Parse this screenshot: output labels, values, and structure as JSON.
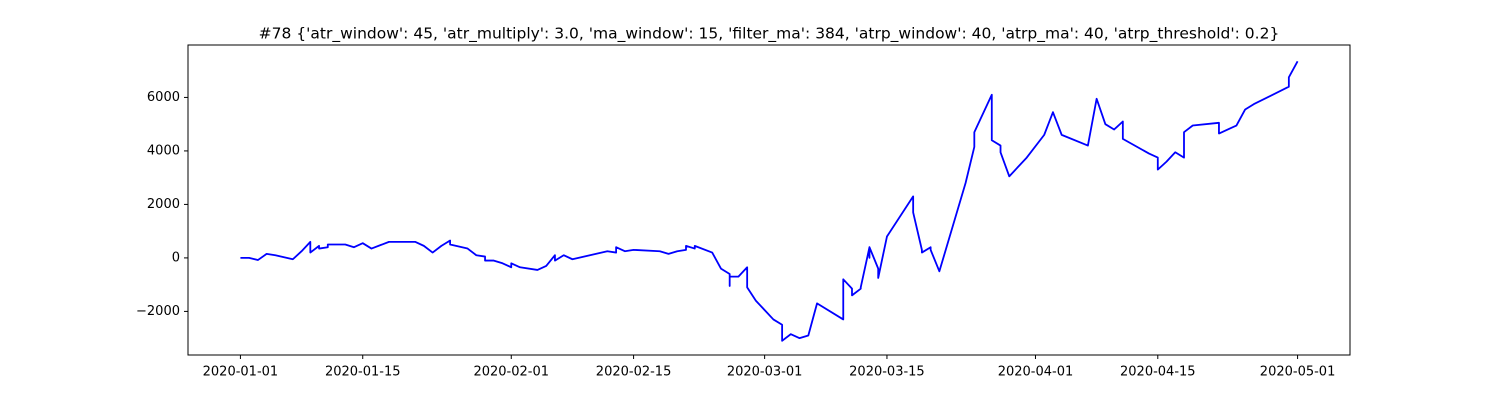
{
  "chart_data": {
    "type": "line",
    "title": "#78 {'atr_window': 45, 'atr_multiply': 3.0, 'ma_window': 15, 'filter_ma': 384, 'atrp_window': 40, 'atrp_ma': 40, 'atrp_threshold': 0.2}",
    "color": "#0000ff",
    "x": [
      "2020-01-01",
      "2020-01-02",
      "2020-01-03",
      "2020-01-04",
      "2020-01-05",
      "2020-01-07",
      "2020-01-08",
      "2020-01-09",
      "2020-01-09",
      "2020-01-10",
      "2020-01-10",
      "2020-01-11",
      "2020-01-11",
      "2020-01-13",
      "2020-01-14",
      "2020-01-15",
      "2020-01-16",
      "2020-01-18",
      "2020-01-21",
      "2020-01-22",
      "2020-01-23",
      "2020-01-24",
      "2020-01-25",
      "2020-01-25",
      "2020-01-27",
      "2020-01-28",
      "2020-01-29",
      "2020-01-29",
      "2020-01-30",
      "2020-01-31",
      "2020-02-01",
      "2020-02-01",
      "2020-02-02",
      "2020-02-04",
      "2020-02-05",
      "2020-02-06",
      "2020-02-06",
      "2020-02-07",
      "2020-02-08",
      "2020-02-10",
      "2020-02-12",
      "2020-02-13",
      "2020-02-13",
      "2020-02-14",
      "2020-02-15",
      "2020-02-18",
      "2020-02-19",
      "2020-02-20",
      "2020-02-21",
      "2020-02-21",
      "2020-02-22",
      "2020-02-22",
      "2020-02-24",
      "2020-02-25",
      "2020-02-26",
      "2020-02-26",
      "2020-02-26",
      "2020-02-27",
      "2020-02-28",
      "2020-02-28",
      "2020-02-29",
      "2020-03-02",
      "2020-03-03",
      "2020-03-03",
      "2020-03-04",
      "2020-03-05",
      "2020-03-06",
      "2020-03-07",
      "2020-03-10",
      "2020-03-10",
      "2020-03-11",
      "2020-03-11",
      "2020-03-12",
      "2020-03-12",
      "2020-03-13",
      "2020-03-13",
      "2020-03-13",
      "2020-03-14",
      "2020-03-14",
      "2020-03-15",
      "2020-03-18",
      "2020-03-18",
      "2020-03-18",
      "2020-03-19",
      "2020-03-19",
      "2020-03-20",
      "2020-03-20",
      "2020-03-21",
      "2020-03-24",
      "2020-03-25",
      "2020-03-25",
      "2020-03-27",
      "2020-03-27",
      "2020-03-27",
      "2020-03-28",
      "2020-03-28",
      "2020-03-29",
      "2020-03-31",
      "2020-04-02",
      "2020-04-03",
      "2020-04-04",
      "2020-04-07",
      "2020-04-08",
      "2020-04-09",
      "2020-04-10",
      "2020-04-11",
      "2020-04-11",
      "2020-04-14",
      "2020-04-15",
      "2020-04-15",
      "2020-04-16",
      "2020-04-17",
      "2020-04-18",
      "2020-04-18",
      "2020-04-19",
      "2020-04-22",
      "2020-04-22",
      "2020-04-24",
      "2020-04-25",
      "2020-04-26",
      "2020-04-30",
      "2020-04-30",
      "2020-05-01"
    ],
    "values": [
      0,
      0,
      -80,
      150,
      100,
      -50,
      250,
      600,
      200,
      450,
      350,
      400,
      500,
      500,
      400,
      550,
      350,
      600,
      600,
      450,
      200,
      450,
      650,
      500,
      350,
      100,
      50,
      -100,
      -100,
      -200,
      -350,
      -200,
      -350,
      -450,
      -300,
      100,
      -100,
      100,
      -50,
      100,
      250,
      200,
      400,
      250,
      300,
      250,
      150,
      250,
      300,
      450,
      350,
      450,
      200,
      -400,
      -600,
      -1050,
      -700,
      -700,
      -350,
      -1100,
      -1600,
      -2300,
      -2500,
      -3100,
      -2850,
      -3000,
      -2900,
      -1700,
      -2300,
      -800,
      -1150,
      -1400,
      -1150,
      -1100,
      400,
      0,
      400,
      -400,
      -750,
      800,
      2300,
      1800,
      1700,
      300,
      200,
      400,
      300,
      -500,
      2800,
      4150,
      4700,
      6100,
      5100,
      4400,
      4200,
      3950,
      3050,
      3750,
      4600,
      5450,
      4600,
      4200,
      5950,
      5000,
      4800,
      5100,
      4450,
      3900,
      3750,
      3300,
      3600,
      3950,
      3750,
      4700,
      4950,
      5050,
      4650,
      4950,
      5550,
      5750,
      6400,
      6750,
      7350
    ],
    "xlim": [
      "2019-12-26",
      "2020-05-07"
    ],
    "xticks": [
      "2020-01-01",
      "2020-01-15",
      "2020-02-01",
      "2020-02-15",
      "2020-03-01",
      "2020-03-15",
      "2020-04-01",
      "2020-04-15",
      "2020-05-01"
    ],
    "ylim": [
      -3630,
      7960
    ],
    "yticks": [
      {
        "value": -2000,
        "label": "−2000"
      },
      0,
      2000,
      4000,
      6000
    ]
  }
}
